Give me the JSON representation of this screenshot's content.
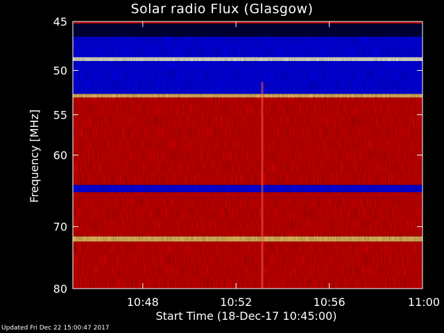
{
  "chart_data": {
    "type": "heatmap",
    "title": "Solar radio Flux (Glasgow)",
    "xlabel": "Start Time (18-Dec-17 10:45:00)",
    "ylabel": "Frequency [MHz]",
    "footer": "Updated Fri Dec 22 15:00:47 2017",
    "x_ticks": [
      "10:48",
      "10:52",
      "10:56",
      "11:00"
    ],
    "x_tick_minutes": [
      48,
      52,
      56,
      60
    ],
    "xlim_minutes": [
      45,
      60
    ],
    "y_ticks": [
      45,
      50,
      55,
      60,
      70,
      80
    ],
    "ylim": [
      45,
      80
    ],
    "y_scale": "log",
    "colormap": {
      "low": "#000040",
      "mid_low": "#0000ff",
      "mid": "#e00000",
      "high": "#ffcc66",
      "max": "#ffffe0"
    },
    "bands": [
      {
        "from": 45.0,
        "to": 45.2,
        "level": "mid"
      },
      {
        "from": 45.2,
        "to": 46.5,
        "level": "low"
      },
      {
        "from": 46.5,
        "to": 48.6,
        "level": "mid_low"
      },
      {
        "from": 48.6,
        "to": 49.0,
        "level": "max"
      },
      {
        "from": 49.0,
        "to": 52.6,
        "level": "mid_low"
      },
      {
        "from": 52.6,
        "to": 53.0,
        "level": "high"
      },
      {
        "from": 53.0,
        "to": 64.0,
        "level": "mid"
      },
      {
        "from": 64.0,
        "to": 65.0,
        "level": "mid_low"
      },
      {
        "from": 65.0,
        "to": 71.5,
        "level": "mid"
      },
      {
        "from": 71.5,
        "to": 72.3,
        "level": "high"
      },
      {
        "from": 72.3,
        "to": 80.0,
        "level": "mid"
      }
    ]
  }
}
